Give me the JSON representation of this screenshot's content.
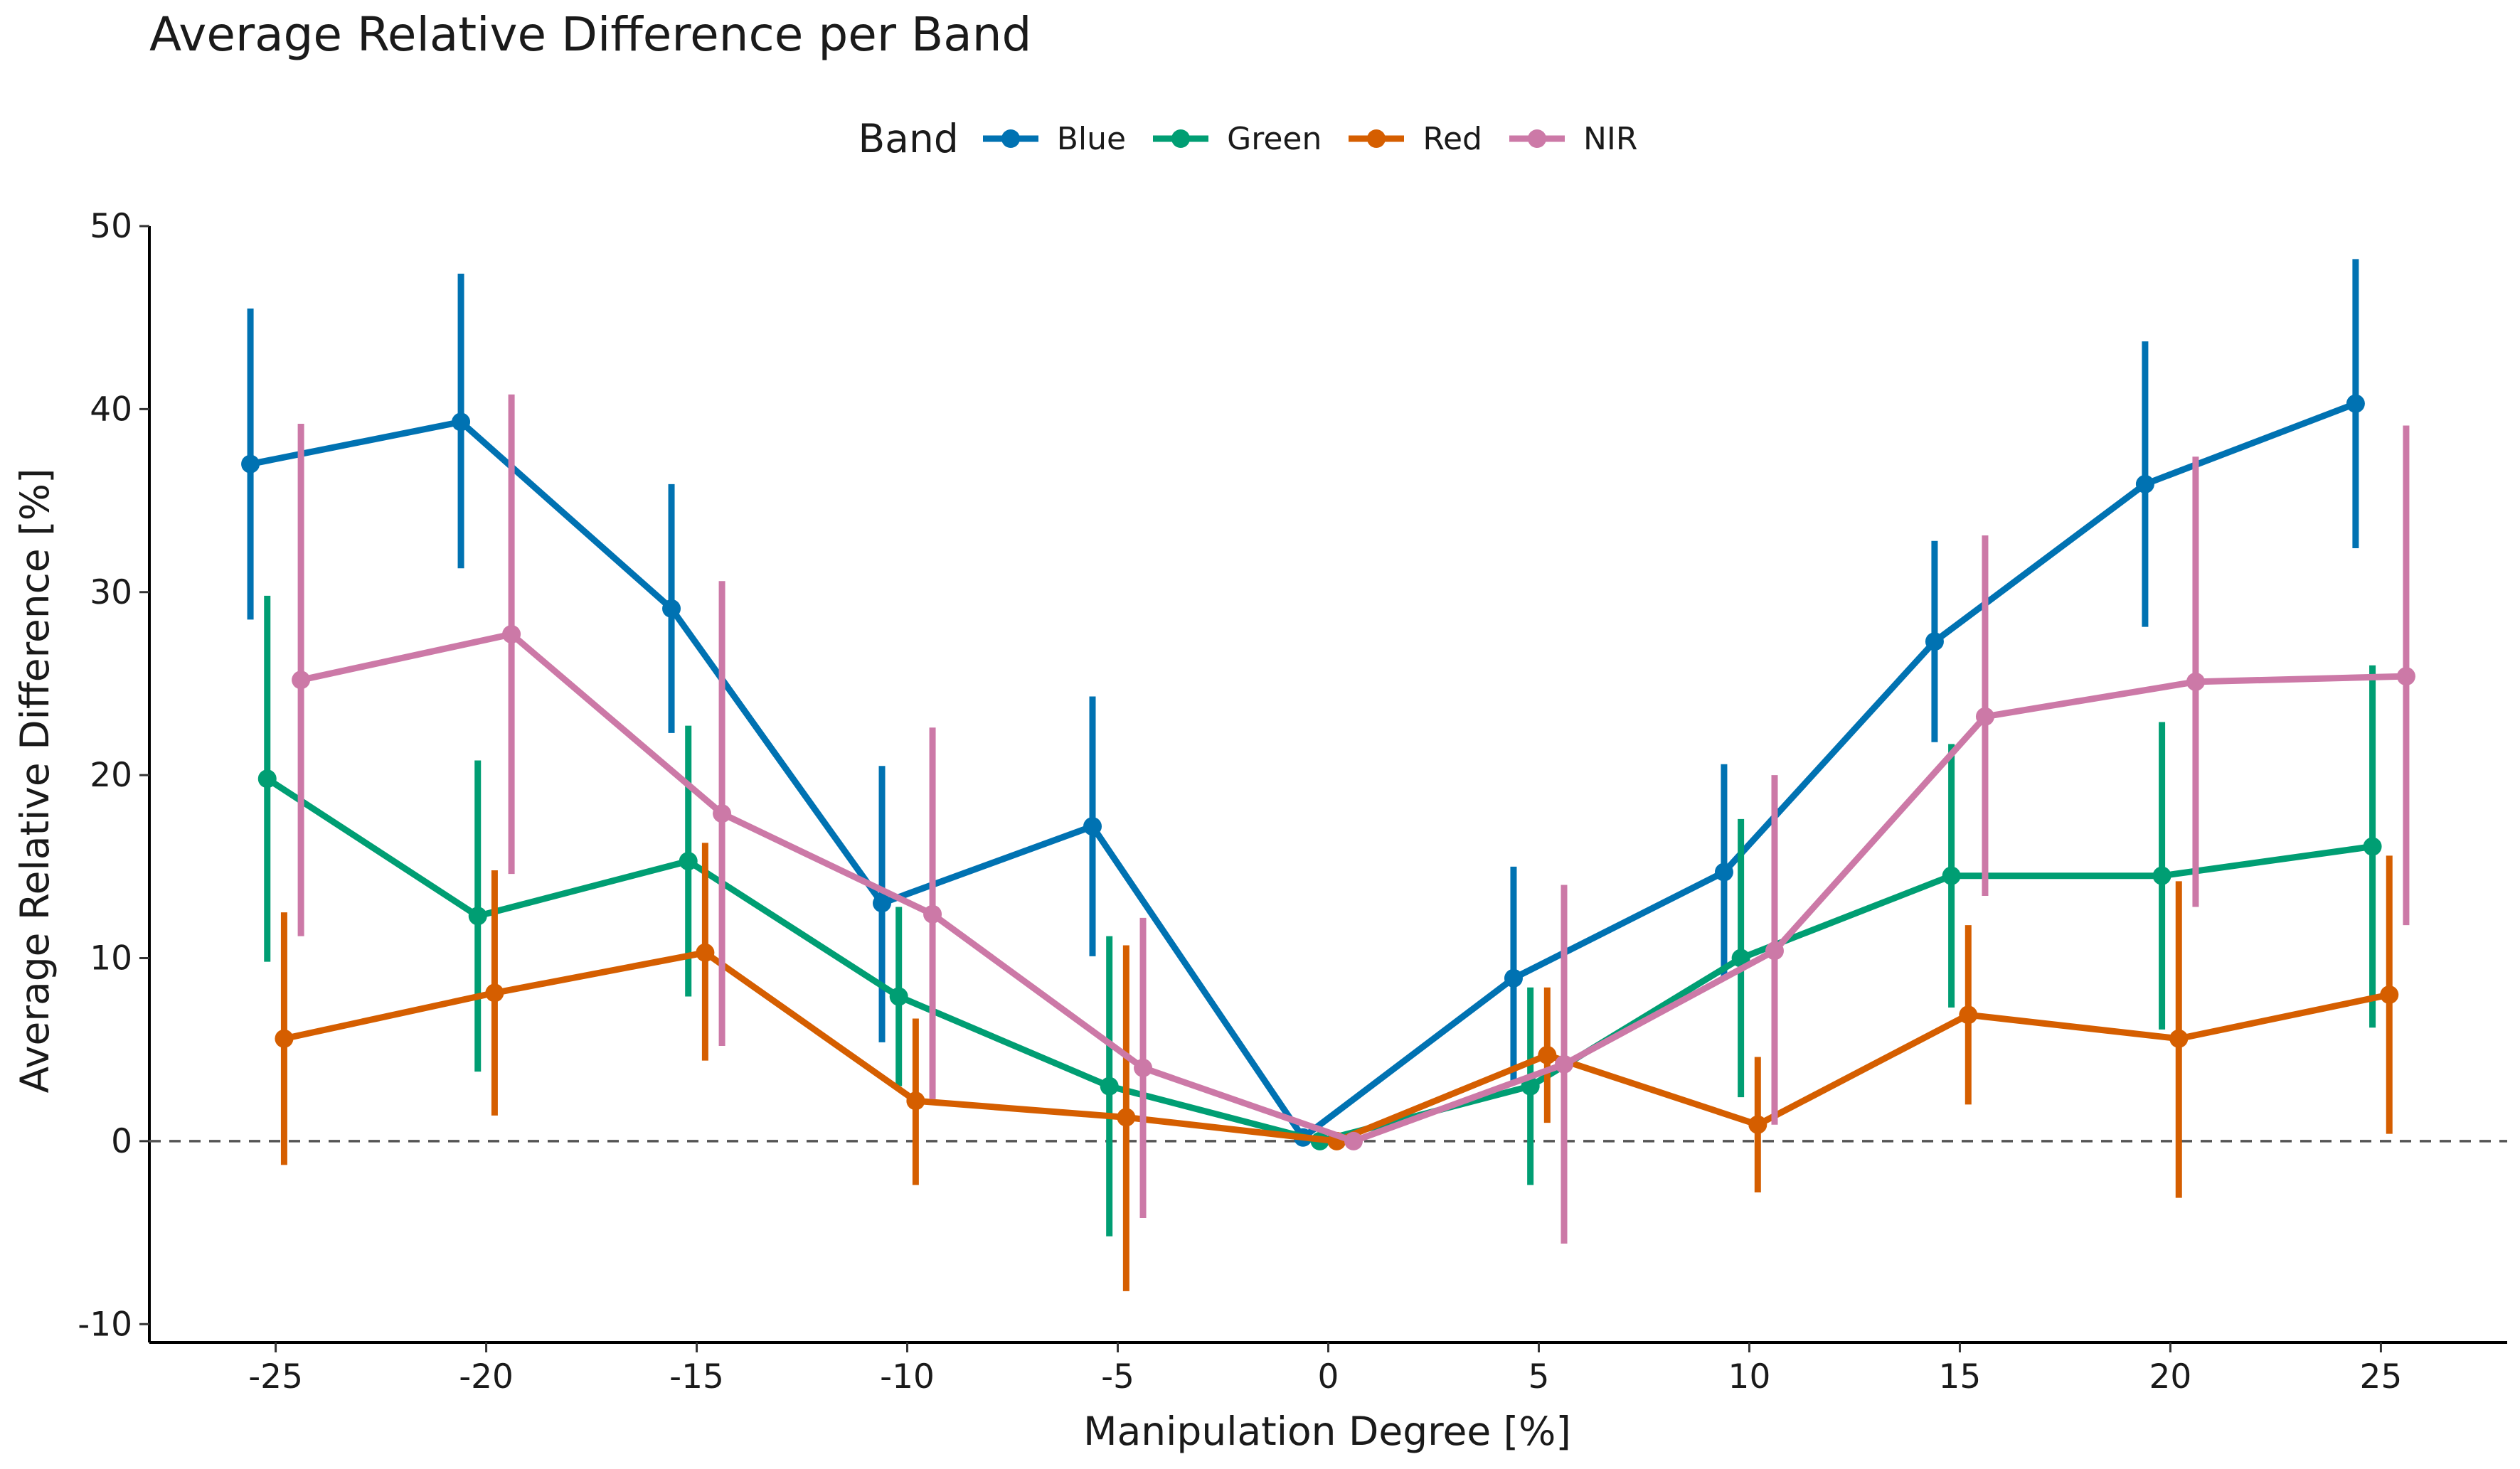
{
  "chart_data": {
    "type": "line",
    "title": "Average Relative Difference per Band",
    "xlabel": "Manipulation Degree [%]",
    "ylabel": "Average Relative Difference [%]",
    "legend_title": "Band",
    "legend_position": "top",
    "grid": false,
    "reference_line": {
      "y": 0,
      "style": "dashed",
      "color": "#555555"
    },
    "xlim": [
      -28,
      28
    ],
    "ylim": [
      -11,
      50
    ],
    "x_ticks": [
      -25,
      -20,
      -15,
      -10,
      -5,
      0,
      5,
      10,
      15,
      20,
      25
    ],
    "x_tick_labels": [
      "-25",
      "-20",
      "-15",
      "-10",
      "-5",
      "0",
      "5",
      "10",
      "15",
      "20",
      "25"
    ],
    "y_ticks": [
      -10,
      0,
      10,
      20,
      30,
      40,
      50
    ],
    "y_tick_labels": [
      "-10",
      "0",
      "10",
      "20",
      "30",
      "40",
      "50"
    ],
    "x": [
      -25,
      -20,
      -15,
      -10,
      -5,
      0,
      5,
      10,
      15,
      20,
      25
    ],
    "series": [
      {
        "name": "Blue",
        "color": "#0072B2",
        "values": [
          37.0,
          39.3,
          29.1,
          13.0,
          17.2,
          0.2,
          8.9,
          14.7,
          27.3,
          35.9,
          40.3
        ],
        "error_low": [
          28.5,
          31.3,
          22.3,
          5.4,
          10.1,
          0.0,
          3.2,
          8.9,
          21.8,
          28.1,
          32.4
        ],
        "error_high": [
          45.5,
          47.4,
          35.9,
          20.5,
          24.3,
          0.5,
          15.0,
          20.6,
          32.8,
          43.7,
          48.2
        ]
      },
      {
        "name": "Green",
        "color": "#009E73",
        "values": [
          19.8,
          12.3,
          15.3,
          7.9,
          3.0,
          0.0,
          3.0,
          10.0,
          14.5,
          14.5,
          16.1
        ],
        "error_low": [
          9.8,
          3.8,
          7.9,
          3.0,
          -5.2,
          -0.1,
          -2.4,
          2.4,
          7.3,
          6.1,
          6.2
        ],
        "error_high": [
          29.8,
          20.8,
          22.7,
          12.8,
          11.2,
          0.1,
          8.4,
          17.6,
          21.7,
          22.9,
          26.0
        ]
      },
      {
        "name": "Red",
        "color": "#D55E00",
        "values": [
          5.6,
          8.1,
          10.3,
          2.2,
          1.3,
          0.0,
          4.7,
          0.9,
          6.9,
          5.6,
          8.0
        ],
        "error_low": [
          -1.3,
          1.4,
          4.4,
          -2.4,
          -8.2,
          -0.1,
          1.0,
          -2.8,
          2.0,
          -3.1,
          0.4
        ],
        "error_high": [
          12.5,
          14.8,
          16.3,
          6.7,
          10.7,
          0.1,
          8.4,
          4.6,
          11.8,
          14.2,
          15.6
        ]
      },
      {
        "name": "NIR",
        "color": "#CC79A7",
        "values": [
          25.2,
          27.7,
          17.9,
          12.4,
          4.0,
          0.0,
          4.2,
          10.4,
          23.2,
          25.1,
          25.4
        ],
        "error_low": [
          11.2,
          14.6,
          5.2,
          2.3,
          -4.2,
          -0.1,
          -5.6,
          0.9,
          13.4,
          12.8,
          11.8
        ],
        "error_high": [
          39.2,
          40.8,
          30.6,
          22.6,
          12.2,
          0.1,
          14.0,
          20.0,
          33.1,
          37.4,
          39.1
        ]
      }
    ]
  }
}
